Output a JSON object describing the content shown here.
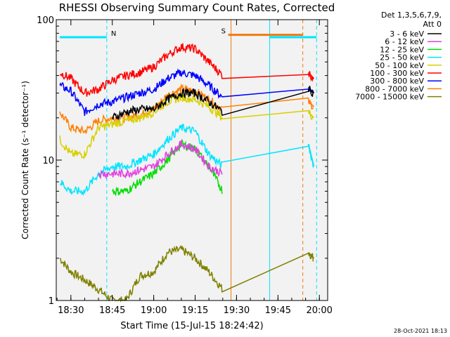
{
  "chart_data": {
    "type": "line",
    "title": "RHESSI Observing Summary Count Rates, Corrected",
    "xlabel": "Start Time (15-Jul-15 18:24:42)",
    "ylabel": "Corrected Count Rate (s⁻¹ detector⁻¹)",
    "y_scale": "log",
    "ylim": [
      1,
      100
    ],
    "xlim_minutes": [
      "18:24:42",
      "20:03:00"
    ],
    "x_ticks": [
      "18:30",
      "18:45",
      "19:00",
      "19:15",
      "19:30",
      "19:45",
      "20:00"
    ],
    "y_ticks": [
      "1",
      "10",
      "100"
    ],
    "legend_header": [
      "Det 1,3,5,6,7,9,",
      "Att 0"
    ],
    "legend_position": "top-right",
    "footer_date": "28-Oct-2021 18:13",
    "annotations": [
      {
        "label": "N",
        "color": "#00e5ff",
        "start": "18:26",
        "end": "18:43",
        "level": 75
      },
      {
        "label": "S",
        "color": "#f07a10",
        "start": "19:27",
        "end": "19:54",
        "level": 78
      },
      {
        "label": "",
        "color": "#00e5ff",
        "start": "19:42",
        "end": "19:59",
        "level": 75
      }
    ],
    "vlines": [
      {
        "time": "18:43",
        "color": "#00e5ff",
        "dashed": true
      },
      {
        "time": "19:28",
        "color": "#f07a10",
        "dashed": false
      },
      {
        "time": "19:42",
        "color": "#00e5ff",
        "dashed": false
      },
      {
        "time": "19:54",
        "color": "#f07a10",
        "dashed": true
      },
      {
        "time": "19:59",
        "color": "#00e5ff",
        "dashed": true
      }
    ],
    "x": [
      "18:26",
      "18:30",
      "18:35",
      "18:40",
      "18:45",
      "18:50",
      "18:55",
      "19:00",
      "19:05",
      "19:10",
      "19:15",
      "19:20",
      "19:25",
      "19:56",
      "19:58"
    ],
    "series": [
      {
        "name": "3 - 6 keV",
        "color": "#000000",
        "values": [
          null,
          null,
          null,
          null,
          20,
          22,
          23,
          23,
          27,
          30,
          30,
          26,
          22,
          32,
          30
        ]
      },
      {
        "name": "6 - 12 keV",
        "color": "#e040e0",
        "values": [
          null,
          null,
          null,
          8,
          8,
          8,
          8.5,
          9,
          11,
          13,
          12,
          9,
          8,
          null,
          null
        ]
      },
      {
        "name": "12 - 25 keV",
        "color": "#00dd00",
        "values": [
          null,
          null,
          null,
          null,
          6,
          6,
          7,
          8,
          10,
          13,
          12,
          9,
          6,
          null,
          null
        ]
      },
      {
        "name": "25 - 50 keV",
        "color": "#00e5ff",
        "values": [
          7,
          6,
          6,
          8,
          9,
          9,
          10,
          11,
          14,
          17,
          16,
          11,
          9,
          13,
          9
        ]
      },
      {
        "name": "50 - 100 keV",
        "color": "#d8d000",
        "values": [
          14,
          11,
          11,
          17,
          18,
          19,
          20,
          22,
          26,
          28,
          27,
          24,
          20,
          22,
          20
        ]
      },
      {
        "name": "100 - 300 keV",
        "color": "#ff0000",
        "values": [
          42,
          38,
          30,
          32,
          37,
          40,
          42,
          46,
          56,
          64,
          62,
          50,
          40,
          42,
          38
        ]
      },
      {
        "name": "300 - 800 keV",
        "color": "#0000ff",
        "values": [
          34,
          31,
          22,
          25,
          26,
          28,
          30,
          32,
          38,
          42,
          40,
          34,
          28,
          33,
          30
        ]
      },
      {
        "name": "800 - 7000 keV",
        "color": "#ff8000",
        "values": [
          22,
          17,
          16,
          19,
          20,
          20,
          21,
          23,
          29,
          32,
          31,
          27,
          23,
          26,
          24
        ]
      },
      {
        "name": "7000 - 15000 keV",
        "color": "#808000",
        "values": [
          2,
          1.6,
          1.4,
          1.2,
          1,
          1,
          1.5,
          1.6,
          2.2,
          2.3,
          2,
          1.6,
          1.2,
          2.2,
          2
        ]
      }
    ]
  }
}
